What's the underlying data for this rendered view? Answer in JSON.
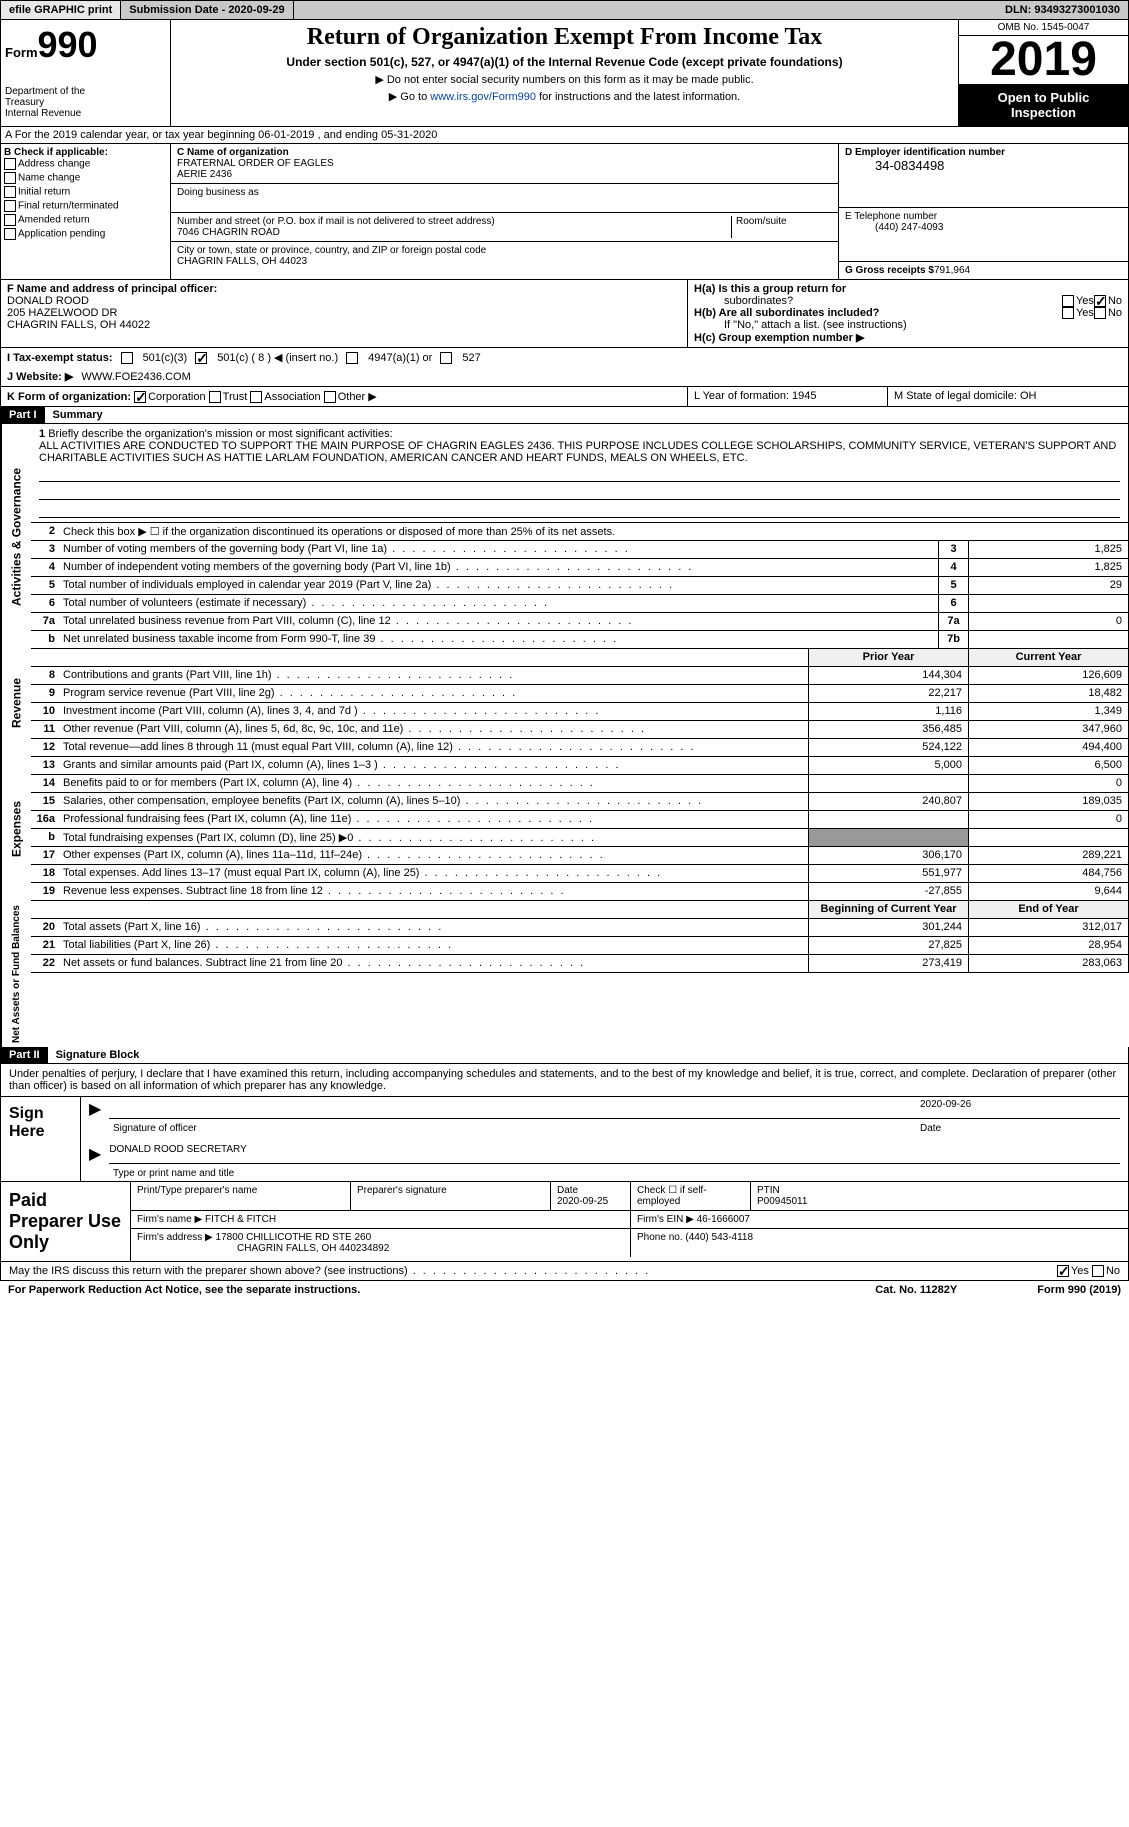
{
  "topbar": {
    "efile": "efile GRAPHIC print",
    "submission": "Submission Date - 2020-09-29",
    "dln": "DLN: 93493273001030"
  },
  "header": {
    "form_label": "Form",
    "form_num": "990",
    "dept1": "Department of the",
    "dept2": "Treasury",
    "dept3": "Internal Revenue",
    "title": "Return of Organization Exempt From Income Tax",
    "sub": "Under section 501(c), 527, or 4947(a)(1) of the Internal Revenue Code (except private foundations)",
    "note1": "▶ Do not enter social security numbers on this form as it may be made public.",
    "note2_pre": "▶ Go to ",
    "note2_link": "www.irs.gov/Form990",
    "note2_post": " for instructions and the latest information.",
    "omb": "OMB No. 1545-0047",
    "year": "2019",
    "open": "Open to Public Inspection"
  },
  "row_a": "A For the 2019 calendar year, or tax year beginning 06-01-2019    , and ending 05-31-2020",
  "box_b": {
    "label": "B Check if applicable:",
    "items": [
      "Address change",
      "Name change",
      "Initial return",
      "Final return/terminated",
      "Amended return",
      "Application pending"
    ]
  },
  "box_c": {
    "name_lbl": "C Name of organization",
    "name": "FRATERNAL ORDER OF EAGLES",
    "name2": "AERIE 2436",
    "dba_lbl": "Doing business as",
    "addr_lbl": "Number and street (or P.O. box if mail is not delivered to street address)",
    "room_lbl": "Room/suite",
    "addr": "7046 CHAGRIN ROAD",
    "city_lbl": "City or town, state or province, country, and ZIP or foreign postal code",
    "city": "CHAGRIN FALLS, OH   44023"
  },
  "box_d": {
    "ein_lbl": "D Employer identification number",
    "ein": "34-0834498",
    "tel_lbl": "E Telephone number",
    "tel": "(440) 247-4093",
    "gross_lbl": "G Gross receipts $",
    "gross": "791,964"
  },
  "box_f": {
    "lbl": "F  Name and address of principal officer:",
    "name": "DONALD ROOD",
    "addr1": "205 HAZELWOOD DR",
    "addr2": "CHAGRIN FALLS, OH   44022"
  },
  "box_h": {
    "ha_lbl": "H(a)  Is this a group return for",
    "ha_lbl2": "subordinates?",
    "hb_lbl": "H(b)  Are all subordinates included?",
    "hb_note": "If \"No,\" attach a list. (see instructions)",
    "hc_lbl": "H(c)  Group exemption number ▶",
    "yes": "Yes",
    "no": "No"
  },
  "tax_status": {
    "lbl": "I   Tax-exempt status:",
    "opts": [
      "501(c)(3)",
      "501(c) ( 8 ) ◀ (insert no.)",
      "4947(a)(1) or",
      "527"
    ]
  },
  "website": {
    "lbl": "J   Website: ▶",
    "val": "WWW.FOE2436.COM"
  },
  "korg": {
    "lbl": "K Form of organization:",
    "opts": [
      "Corporation",
      "Trust",
      "Association",
      "Other ▶"
    ]
  },
  "lm": {
    "l": "L Year of formation: 1945",
    "m": "M State of legal domicile: OH"
  },
  "part1": {
    "hdr": "Part I",
    "title": "Summary",
    "q1": "Briefly describe the organization's mission or most significant activities:",
    "mission": "ALL ACTIVITIES ARE CONDUCTED TO SUPPORT THE MAIN PURPOSE OF CHAGRIN EAGLES 2436. THIS PURPOSE INCLUDES COLLEGE SCHOLARSHIPS, COMMUNITY SERVICE, VETERAN'S SUPPORT AND CHARITABLE ACTIVITIES SUCH AS HATTIE LARLAM FOUNDATION, AMERICAN CANCER AND HEART FUNDS, MEALS ON WHEELS, ETC.",
    "q2": "Check this box ▶ ☐  if the organization discontinued its operations or disposed of more than 25% of its net assets."
  },
  "gov_lines": [
    {
      "n": "3",
      "d": "Number of voting members of the governing body (Part VI, line 1a)",
      "b": "3",
      "v": "1,825"
    },
    {
      "n": "4",
      "d": "Number of independent voting members of the governing body (Part VI, line 1b)",
      "b": "4",
      "v": "1,825"
    },
    {
      "n": "5",
      "d": "Total number of individuals employed in calendar year 2019 (Part V, line 2a)",
      "b": "5",
      "v": "29"
    },
    {
      "n": "6",
      "d": "Total number of volunteers (estimate if necessary)",
      "b": "6",
      "v": ""
    },
    {
      "n": "7a",
      "d": "Total unrelated business revenue from Part VIII, column (C), line 12",
      "b": "7a",
      "v": "0"
    },
    {
      "n": "b",
      "d": "Net unrelated business taxable income from Form 990-T, line 39",
      "b": "7b",
      "v": ""
    }
  ],
  "rev_hdr": {
    "prior": "Prior Year",
    "curr": "Current Year"
  },
  "rev_lines": [
    {
      "n": "8",
      "d": "Contributions and grants (Part VIII, line 1h)",
      "p": "144,304",
      "c": "126,609"
    },
    {
      "n": "9",
      "d": "Program service revenue (Part VIII, line 2g)",
      "p": "22,217",
      "c": "18,482"
    },
    {
      "n": "10",
      "d": "Investment income (Part VIII, column (A), lines 3, 4, and 7d )",
      "p": "1,116",
      "c": "1,349"
    },
    {
      "n": "11",
      "d": "Other revenue (Part VIII, column (A), lines 5, 6d, 8c, 9c, 10c, and 11e)",
      "p": "356,485",
      "c": "347,960"
    },
    {
      "n": "12",
      "d": "Total revenue—add lines 8 through 11 (must equal Part VIII, column (A), line 12)",
      "p": "524,122",
      "c": "494,400"
    }
  ],
  "exp_lines": [
    {
      "n": "13",
      "d": "Grants and similar amounts paid (Part IX, column (A), lines 1–3 )",
      "p": "5,000",
      "c": "6,500"
    },
    {
      "n": "14",
      "d": "Benefits paid to or for members (Part IX, column (A), line 4)",
      "p": "",
      "c": "0"
    },
    {
      "n": "15",
      "d": "Salaries, other compensation, employee benefits (Part IX, column (A), lines 5–10)",
      "p": "240,807",
      "c": "189,035"
    },
    {
      "n": "16a",
      "d": "Professional fundraising fees (Part IX, column (A), line 11e)",
      "p": "",
      "c": "0"
    },
    {
      "n": "b",
      "d": "Total fundraising expenses (Part IX, column (D), line 25) ▶0",
      "p": "",
      "c": "",
      "shaded": true
    },
    {
      "n": "17",
      "d": "Other expenses (Part IX, column (A), lines 11a–11d, 11f–24e)",
      "p": "306,170",
      "c": "289,221"
    },
    {
      "n": "18",
      "d": "Total expenses. Add lines 13–17 (must equal Part IX, column (A), line 25)",
      "p": "551,977",
      "c": "484,756"
    },
    {
      "n": "19",
      "d": "Revenue less expenses. Subtract line 18 from line 12",
      "p": "-27,855",
      "c": "9,644"
    }
  ],
  "na_hdr": {
    "prior": "Beginning of Current Year",
    "curr": "End of Year"
  },
  "na_lines": [
    {
      "n": "20",
      "d": "Total assets (Part X, line 16)",
      "p": "301,244",
      "c": "312,017"
    },
    {
      "n": "21",
      "d": "Total liabilities (Part X, line 26)",
      "p": "27,825",
      "c": "28,954"
    },
    {
      "n": "22",
      "d": "Net assets or fund balances. Subtract line 21 from line 20",
      "p": "273,419",
      "c": "283,063"
    }
  ],
  "side_labels": {
    "gov": "Activities & Governance",
    "rev": "Revenue",
    "exp": "Expenses",
    "na": "Net Assets or Fund Balances"
  },
  "part2": {
    "hdr": "Part II",
    "title": "Signature Block",
    "decl": "Under penalties of perjury, I declare that I have examined this return, including accompanying schedules and statements, and to the best of my knowledge and belief, it is true, correct, and complete. Declaration of preparer (other than officer) is based on all information of which preparer has any knowledge.",
    "sign_here": "Sign Here",
    "sig_officer": "Signature of officer",
    "sig_date": "2020-09-26",
    "sig_date_lbl": "Date",
    "officer_name": "DONALD ROOD  SECRETARY",
    "officer_lbl": "Type or print name and title"
  },
  "prep": {
    "title": "Paid Preparer Use Only",
    "h1": "Print/Type preparer's name",
    "h2": "Preparer's signature",
    "h3": "Date",
    "date": "2020-09-25",
    "h4": "Check ☐ if self-employed",
    "h5": "PTIN",
    "ptin": "P00945011",
    "firm_lbl": "Firm's name    ▶",
    "firm": "FITCH & FITCH",
    "ein_lbl": "Firm's EIN ▶",
    "ein": "46-1666007",
    "addr_lbl": "Firm's address ▶",
    "addr1": "17800 CHILLICOTHE RD STE 260",
    "addr2": "CHAGRIN FALLS, OH   440234892",
    "phone_lbl": "Phone no.",
    "phone": "(440) 543-4118"
  },
  "discuss": "May the IRS discuss this return with the preparer shown above? (see instructions)",
  "footer": {
    "left": "For Paperwork Reduction Act Notice, see the separate instructions.",
    "mid": "Cat. No. 11282Y",
    "right": "Form 990 (2019)"
  }
}
